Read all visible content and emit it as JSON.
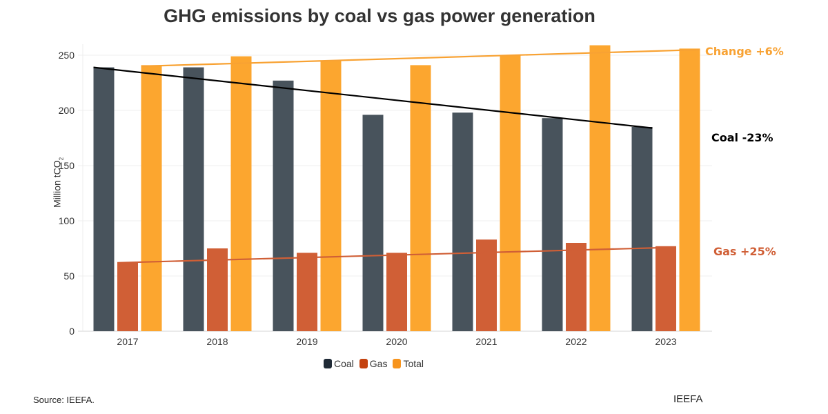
{
  "chart_data": {
    "type": "bar",
    "title": "GHG emissions by coal vs gas power generation",
    "xlabel": "",
    "ylabel": "Million tCO",
    "ylabel_subscript": "2",
    "ylim": [
      0,
      260
    ],
    "yticks": [
      0,
      50,
      100,
      150,
      200,
      250
    ],
    "grid": true,
    "categories": [
      "2017",
      "2018",
      "2019",
      "2020",
      "2021",
      "2022",
      "2023"
    ],
    "series": [
      {
        "name": "Coal",
        "color": "#48535c",
        "legend_color": "#1f2a36",
        "values": [
          239,
          239,
          227,
          196,
          198,
          193,
          185
        ]
      },
      {
        "name": "Gas",
        "color": "#d05f36",
        "legend_color": "#c4420f",
        "values": [
          62,
          75,
          71,
          71,
          83,
          80,
          77
        ]
      },
      {
        "name": "Total",
        "color": "#fca62f",
        "legend_color": "#f7941d",
        "values": [
          241,
          249,
          245,
          241,
          250,
          259,
          256
        ]
      }
    ],
    "trendlines": [
      {
        "series": "Total",
        "color": "#f8a233",
        "start": 240,
        "end": 255,
        "label": "Change +6%"
      },
      {
        "series": "Coal",
        "color": "#000000",
        "start": 239,
        "end": 184,
        "label": "Coal -23%"
      },
      {
        "series": "Gas",
        "color": "#d05f36",
        "start": 62,
        "end": 76,
        "label": "Gas +25%"
      }
    ],
    "legend_position": "bottom"
  },
  "footer": {
    "source": "Source: IEEFA.",
    "brand": "IEEFA"
  }
}
